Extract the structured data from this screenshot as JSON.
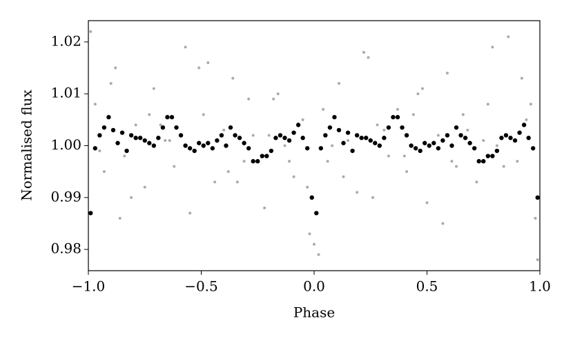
{
  "chart_data": {
    "type": "scatter",
    "xlabel": "Phase",
    "ylabel": "Normalised flux",
    "xlim": [
      -1,
      1
    ],
    "ylim": [
      0.9759,
      1.0241
    ],
    "xticks": [
      {
        "value": -1,
        "label": "−1.0"
      },
      {
        "value": -0.5,
        "label": "−0.5"
      },
      {
        "value": 0,
        "label": "0.0"
      },
      {
        "value": 0.5,
        "label": "0.5"
      },
      {
        "value": 1,
        "label": "1.0"
      }
    ],
    "yticks": [
      0.98,
      0.99,
      {
        "value": 1,
        "label": "1.00"
      },
      1.01,
      1.02
    ],
    "series": [
      {
        "color": "#aaaaaa",
        "size": 2,
        "x": [
          -0.97,
          -0.93,
          -0.88,
          -0.84,
          -0.79,
          -0.75,
          -0.71,
          -0.66,
          -0.62,
          -0.57,
          -0.53,
          -0.49,
          -0.44,
          -0.4,
          -0.36,
          -0.31,
          -0.27,
          -0.22,
          -0.18,
          -0.13,
          -0.09,
          -0.05,
          -0.02,
          0.02,
          0.06,
          0.11,
          0.15,
          0.19,
          0.24,
          0.28,
          0.33,
          0.37,
          0.41,
          0.46,
          0.5,
          0.55,
          0.59,
          0.63,
          0.68,
          0.72,
          0.77,
          0.81,
          0.86,
          0.9,
          0.94,
          0.98,
          -0.95,
          -0.9,
          -0.81,
          -0.73,
          -0.64,
          -0.55,
          -0.47,
          -0.38,
          -0.29,
          -0.2,
          -0.11,
          -0.03,
          0.0,
          0.04,
          0.13,
          0.22,
          0.31,
          0.4,
          0.48,
          0.57,
          0.66,
          0.75,
          0.84,
          0.92,
          0.99,
          -0.99,
          -0.86,
          -0.68,
          -0.51,
          -0.34,
          -0.16,
          0.08,
          0.26,
          0.44,
          0.61,
          0.79,
          0.96
        ],
        "values": [
          1.008,
          0.995,
          1.015,
          0.998,
          1.004,
          0.992,
          1.011,
          1.001,
          0.996,
          1.019,
          0.999,
          1.006,
          0.993,
          1.003,
          1.013,
          0.997,
          1.002,
          0.988,
          1.009,
          1.0,
          0.994,
          1.005,
          0.983,
          0.979,
          0.997,
          1.012,
          1.001,
          0.991,
          1.017,
          1.004,
          0.998,
          1.007,
          0.995,
          1.01,
          0.989,
          1.002,
          1.014,
          0.996,
          1.003,
          0.993,
          1.008,
          1.0,
          1.021,
          0.997,
          1.005,
          0.986,
          0.999,
          1.012,
          0.99,
          1.006,
          1.001,
          0.987,
          1.016,
          0.995,
          1.009,
          1.002,
          0.997,
          0.992,
          0.981,
          1.007,
          0.994,
          1.018,
          1.003,
          0.998,
          1.011,
          0.985,
          1.006,
          1.001,
          0.996,
          1.013,
          0.978,
          1.022,
          0.986,
          1.004,
          1.015,
          0.993,
          1.01,
          1.0,
          0.99,
          1.006,
          0.997,
          1.019,
          1.008
        ]
      },
      {
        "color": "#000000",
        "size": 3.2,
        "x": [
          -0.99,
          -0.97,
          -0.95,
          -0.93,
          -0.91,
          -0.89,
          -0.87,
          -0.85,
          -0.83,
          -0.81,
          -0.79,
          -0.77,
          -0.75,
          -0.73,
          -0.71,
          -0.69,
          -0.67,
          -0.65,
          -0.63,
          -0.61,
          -0.59,
          -0.57,
          -0.55,
          -0.53,
          -0.51,
          -0.49,
          -0.47,
          -0.45,
          -0.43,
          -0.41,
          -0.39,
          -0.37,
          -0.35,
          -0.33,
          -0.31,
          -0.29,
          -0.27,
          -0.25,
          -0.23,
          -0.21,
          -0.19,
          -0.17,
          -0.15,
          -0.13,
          -0.11,
          -0.09,
          -0.07,
          -0.05,
          -0.03,
          -0.01,
          0.01,
          0.03,
          0.05,
          0.07,
          0.09,
          0.11,
          0.13,
          0.15,
          0.17,
          0.19,
          0.21,
          0.23,
          0.25,
          0.27,
          0.29,
          0.31,
          0.33,
          0.35,
          0.37,
          0.39,
          0.41,
          0.43,
          0.45,
          0.47,
          0.49,
          0.51,
          0.53,
          0.55,
          0.57,
          0.59,
          0.61,
          0.63,
          0.65,
          0.67,
          0.69,
          0.71,
          0.73,
          0.75,
          0.77,
          0.79,
          0.81,
          0.83,
          0.85,
          0.87,
          0.89,
          0.91,
          0.93,
          0.95,
          0.97,
          0.99
        ],
        "values": [
          0.987,
          0.9995,
          1.002,
          1.0035,
          1.0055,
          1.003,
          1.0005,
          1.0025,
          0.999,
          1.002,
          1.0015,
          1.0015,
          1.001,
          1.0005,
          1.0,
          1.0015,
          1.0035,
          1.0055,
          1.0055,
          1.0035,
          1.002,
          1.0,
          0.9995,
          0.999,
          1.0005,
          1.0,
          1.0005,
          0.9995,
          1.001,
          1.002,
          1.0,
          1.0035,
          1.002,
          1.0015,
          1.0005,
          0.9995,
          0.997,
          0.997,
          0.998,
          0.998,
          0.999,
          1.0015,
          1.002,
          1.0015,
          1.001,
          1.0025,
          1.004,
          1.0015,
          0.9995,
          0.99,
          0.987,
          0.9995,
          1.002,
          1.0035,
          1.0055,
          1.003,
          1.0005,
          1.0025,
          0.999,
          1.002,
          1.0015,
          1.0015,
          1.001,
          1.0005,
          1.0,
          1.0015,
          1.0035,
          1.0055,
          1.0055,
          1.0035,
          1.002,
          1.0,
          0.9995,
          0.999,
          1.0005,
          1.0,
          1.0005,
          0.9995,
          1.001,
          1.002,
          1.0,
          1.0035,
          1.002,
          1.0015,
          1.0005,
          0.9995,
          0.997,
          0.997,
          0.998,
          0.998,
          0.999,
          1.0015,
          1.002,
          1.0015,
          1.001,
          1.0025,
          1.004,
          1.0015,
          0.9995,
          0.99
        ]
      }
    ]
  }
}
